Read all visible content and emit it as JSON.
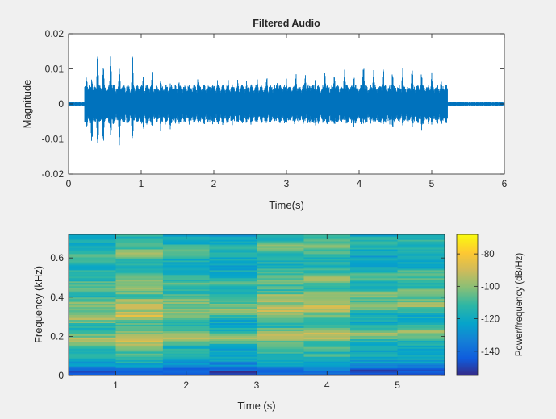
{
  "chart_data": [
    {
      "type": "line",
      "title": "Filtered Audio",
      "xlabel": "Time(s)",
      "ylabel": "Magnitude",
      "xlim": [
        0,
        6
      ],
      "ylim": [
        -0.02,
        0.02
      ],
      "xticks": [
        "0",
        "1",
        "2",
        "3",
        "4",
        "5",
        "6"
      ],
      "yticks": [
        "-0.02",
        "-0.01",
        "0",
        "0.01",
        "0.02"
      ],
      "series": [
        {
          "color": "#0072bd",
          "signal_end_s": 5.2,
          "peaks": [
            {
              "t": 0.25,
              "max": 0.0085,
              "min": -0.0085
            },
            {
              "t": 0.32,
              "max": 0.0075,
              "min": -0.0115
            },
            {
              "t": 0.4,
              "max": 0.0155,
              "min": -0.0135
            },
            {
              "t": 0.48,
              "max": 0.0105,
              "min": -0.0115
            },
            {
              "t": 0.58,
              "max": 0.014,
              "min": -0.0105
            },
            {
              "t": 0.7,
              "max": 0.0115,
              "min": -0.0125
            },
            {
              "t": 0.88,
              "max": 0.0145,
              "min": -0.0115
            },
            {
              "t": 1.03,
              "max": 0.0085,
              "min": -0.0075
            },
            {
              "t": 1.15,
              "max": 0.0095,
              "min": -0.007
            },
            {
              "t": 1.27,
              "max": 0.0085,
              "min": -0.0085
            },
            {
              "t": 1.4,
              "max": 0.006,
              "min": -0.0075
            },
            {
              "t": 1.52,
              "max": 0.007,
              "min": -0.006
            },
            {
              "t": 1.65,
              "max": 0.006,
              "min": -0.005
            },
            {
              "t": 1.78,
              "max": 0.0075,
              "min": -0.006
            },
            {
              "t": 1.92,
              "max": 0.006,
              "min": -0.0055
            },
            {
              "t": 2.05,
              "max": 0.0075,
              "min": -0.006
            },
            {
              "t": 2.2,
              "max": 0.007,
              "min": -0.0055
            },
            {
              "t": 2.33,
              "max": 0.0075,
              "min": -0.005
            },
            {
              "t": 2.45,
              "max": 0.0065,
              "min": -0.005
            },
            {
              "t": 2.6,
              "max": 0.0075,
              "min": -0.0065
            },
            {
              "t": 2.73,
              "max": 0.008,
              "min": -0.0055
            },
            {
              "t": 2.87,
              "max": 0.007,
              "min": -0.0045
            },
            {
              "t": 3.0,
              "max": 0.0075,
              "min": -0.0065
            },
            {
              "t": 3.13,
              "max": 0.009,
              "min": -0.0055
            },
            {
              "t": 3.26,
              "max": 0.0085,
              "min": -0.005
            },
            {
              "t": 3.4,
              "max": 0.008,
              "min": -0.008
            },
            {
              "t": 3.53,
              "max": 0.0095,
              "min": -0.005
            },
            {
              "t": 3.66,
              "max": 0.0085,
              "min": -0.007
            },
            {
              "t": 3.8,
              "max": 0.01,
              "min": -0.005
            },
            {
              "t": 3.93,
              "max": 0.008,
              "min": -0.007
            },
            {
              "t": 4.06,
              "max": 0.012,
              "min": -0.006
            },
            {
              "t": 4.2,
              "max": 0.01,
              "min": -0.006
            },
            {
              "t": 4.33,
              "max": 0.0125,
              "min": -0.0065
            },
            {
              "t": 4.46,
              "max": 0.009,
              "min": -0.008
            },
            {
              "t": 4.6,
              "max": 0.0105,
              "min": -0.007
            },
            {
              "t": 4.73,
              "max": 0.011,
              "min": -0.007
            },
            {
              "t": 4.86,
              "max": 0.0095,
              "min": -0.0075
            },
            {
              "t": 5.0,
              "max": 0.009,
              "min": -0.006
            },
            {
              "t": 5.13,
              "max": 0.0075,
              "min": -0.005
            }
          ]
        }
      ],
      "grid": false
    },
    {
      "type": "heatmap",
      "xlabel": "Time (s)",
      "ylabel": "Frequency (kHz)",
      "xlim": [
        0.33,
        5.67
      ],
      "ylim": [
        0,
        0.72
      ],
      "xticks": [
        "1",
        "2",
        "3",
        "4",
        "5"
      ],
      "yticks": [
        "0",
        "0.2",
        "0.4",
        "0.6"
      ],
      "time_segments": [
        0.33,
        1.0,
        1.67,
        2.33,
        3.0,
        3.67,
        4.33,
        5.0,
        5.67
      ],
      "formant_bands_khz": [
        {
          "center": 0.18,
          "strength": 1.0
        },
        {
          "center": 0.3,
          "strength": 0.85
        },
        {
          "center": 0.36,
          "strength": 0.7
        },
        {
          "center": 0.45,
          "strength": 0.5
        },
        {
          "center": 0.62,
          "strength": 0.45
        }
      ],
      "colorbar": {
        "label": "Power/frequency (dB/Hz)",
        "ticks": [
          "-80",
          "-100",
          "-120",
          "-140"
        ],
        "range_db": [
          -155,
          -68
        ],
        "colormap": "parula"
      }
    }
  ]
}
